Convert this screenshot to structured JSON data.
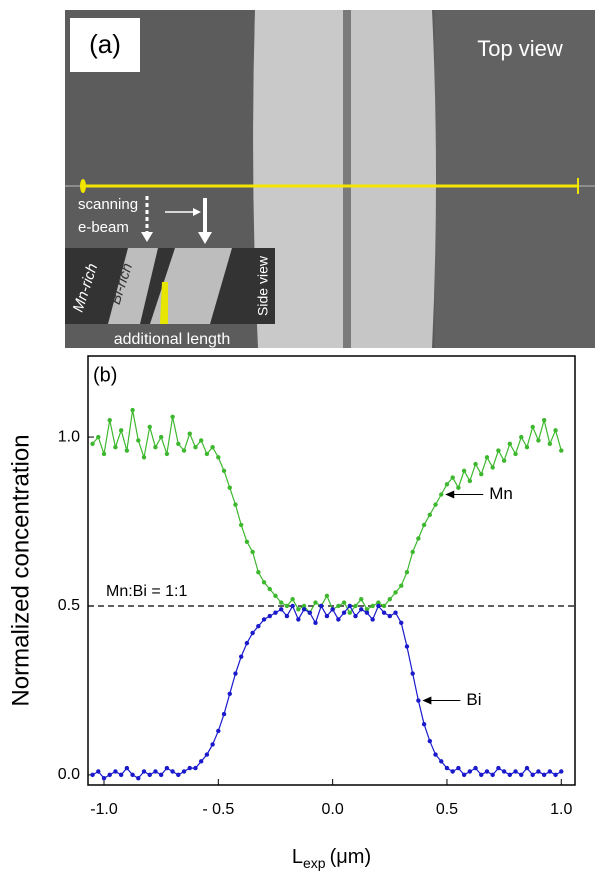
{
  "panel_a": {
    "label": "(a)",
    "view": "Top view",
    "scan_1": "scanning",
    "scan_2": "e-beam",
    "mn_rich": "Mn-rich",
    "bi_rich": "Bi-rich",
    "side_view": "Side view",
    "additional": "additional length"
  },
  "chart_data": {
    "type": "line",
    "panel_label": "(b)",
    "y_label": "Normalized concentration",
    "x_label": {
      "main": "L",
      "sub": "exp",
      "unit": "(μm)"
    },
    "reference": {
      "value": 0.5,
      "label": "Mn:Bi = 1:1"
    },
    "xlim": [
      -1.07,
      1.06
    ],
    "ylim": [
      -0.03,
      1.24
    ],
    "xticks": [
      {
        "value": -1.0,
        "label": "-1.0"
      },
      {
        "value": -0.5,
        "label": "- 0.5"
      },
      {
        "value": 0,
        "label": "0.0"
      },
      {
        "value": 0.5,
        "label": "0.5"
      },
      {
        "value": 1.0,
        "label": "1.0"
      }
    ],
    "yticks": [
      {
        "value": 0,
        "label": "0.0"
      },
      {
        "value": 0.5,
        "label": "0.5"
      },
      {
        "value": 1.0,
        "label": "1.0"
      }
    ],
    "x": [
      -1.05,
      -1.025,
      -1.0,
      -0.975,
      -0.95,
      -0.925,
      -0.9,
      -0.875,
      -0.85,
      -0.825,
      -0.8,
      -0.775,
      -0.75,
      -0.725,
      -0.7,
      -0.675,
      -0.65,
      -0.625,
      -0.6,
      -0.575,
      -0.55,
      -0.525,
      -0.5,
      -0.475,
      -0.45,
      -0.425,
      -0.4,
      -0.375,
      -0.35,
      -0.325,
      -0.3,
      -0.275,
      -0.25,
      -0.225,
      -0.2,
      -0.175,
      -0.15,
      -0.125,
      -0.1,
      -0.075,
      -0.05,
      -0.025,
      0,
      0.025,
      0.05,
      0.075,
      0.1,
      0.125,
      0.15,
      0.175,
      0.2,
      0.225,
      0.25,
      0.275,
      0.3,
      0.325,
      0.35,
      0.375,
      0.4,
      0.425,
      0.45,
      0.475,
      0.5,
      0.525,
      0.55,
      0.575,
      0.6,
      0.625,
      0.65,
      0.675,
      0.7,
      0.725,
      0.75,
      0.775,
      0.8,
      0.825,
      0.85,
      0.875,
      0.9,
      0.925,
      0.95,
      0.975,
      1.0
    ],
    "series": [
      {
        "name": "Mn",
        "color": "#3db82e",
        "label_at": 0.475,
        "values": [
          0.98,
          1.0,
          0.95,
          1.05,
          0.97,
          1.02,
          0.96,
          1.08,
          0.99,
          0.94,
          1.03,
          0.97,
          1.0,
          0.95,
          1.06,
          0.98,
          0.96,
          1.01,
          0.97,
          0.99,
          0.95,
          0.97,
          0.94,
          0.9,
          0.85,
          0.8,
          0.74,
          0.69,
          0.66,
          0.6,
          0.57,
          0.55,
          0.53,
          0.51,
          0.5,
          0.52,
          0.49,
          0.5,
          0.48,
          0.51,
          0.5,
          0.53,
          0.49,
          0.5,
          0.51,
          0.48,
          0.5,
          0.52,
          0.49,
          0.5,
          0.51,
          0.5,
          0.52,
          0.54,
          0.56,
          0.6,
          0.66,
          0.7,
          0.74,
          0.77,
          0.8,
          0.83,
          0.86,
          0.88,
          0.85,
          0.9,
          0.87,
          0.92,
          0.89,
          0.94,
          0.91,
          0.96,
          0.93,
          0.98,
          0.95,
          1.0,
          0.97,
          1.03,
          0.99,
          1.05,
          0.98,
          1.02,
          0.96
        ]
      },
      {
        "name": "Bi",
        "color": "#1a1acc",
        "label_at": 0.375,
        "values": [
          0.0,
          0.01,
          -0.01,
          0.0,
          0.01,
          0.0,
          0.02,
          0.0,
          -0.01,
          0.01,
          0.0,
          0.01,
          0.0,
          0.02,
          0.01,
          0.0,
          0.01,
          0.02,
          0.02,
          0.04,
          0.06,
          0.09,
          0.13,
          0.18,
          0.24,
          0.3,
          0.35,
          0.39,
          0.42,
          0.44,
          0.46,
          0.47,
          0.48,
          0.49,
          0.47,
          0.5,
          0.46,
          0.49,
          0.48,
          0.45,
          0.5,
          0.47,
          0.49,
          0.46,
          0.48,
          0.5,
          0.47,
          0.49,
          0.48,
          0.46,
          0.5,
          0.48,
          0.47,
          0.48,
          0.45,
          0.38,
          0.3,
          0.22,
          0.15,
          0.1,
          0.06,
          0.04,
          0.02,
          0.01,
          0.02,
          0.0,
          0.01,
          0.02,
          0.0,
          0.01,
          0.0,
          0.02,
          0.01,
          0.0,
          0.01,
          0.0,
          0.02,
          0.0,
          0.01,
          0.0,
          0.01,
          0.0,
          0.01
        ]
      }
    ]
  }
}
